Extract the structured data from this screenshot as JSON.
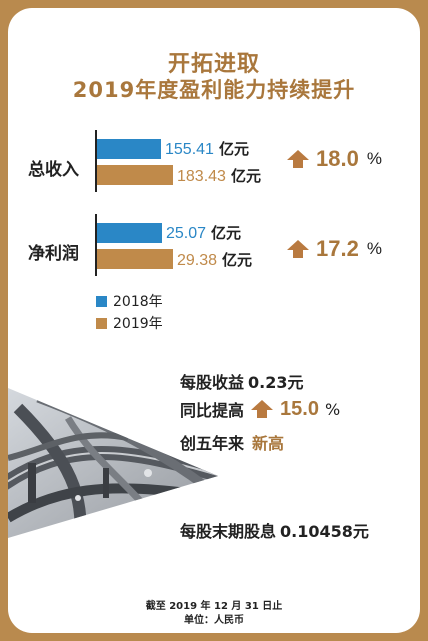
{
  "title": {
    "line1": "开拓进取",
    "line2": "2019年度盈利能力持续提升"
  },
  "colors": {
    "y2018": "#2a87c6",
    "y2019": "#c08a4a",
    "accent": "#a9773c",
    "arrow": "#b97a40"
  },
  "chart_data": {
    "type": "bar",
    "orientation": "horizontal",
    "categories": [
      "总收入",
      "净利润"
    ],
    "series": [
      {
        "name": "2018年",
        "values": [
          155.41,
          25.07
        ]
      },
      {
        "name": "2019年",
        "values": [
          183.43,
          29.38
        ]
      }
    ],
    "unit": "亿元",
    "value_labels": [
      {
        "2018": "155.41",
        "2019": "183.43"
      },
      {
        "2018": "25.07",
        "2019": "29.38"
      }
    ],
    "growth": [
      {
        "value": "18.0",
        "sign": "%"
      },
      {
        "value": "17.2",
        "sign": "%"
      }
    ],
    "legend": [
      "2018年",
      "2019年"
    ]
  },
  "info": {
    "eps_label": "每股收益",
    "eps_value": "0.23元",
    "yoy_label": "同比提高",
    "yoy_value": "15.0",
    "yoy_sign": "%",
    "record_label": "创五年来",
    "record_value": "新高",
    "dividend_label": "每股末期股息",
    "dividend_value": "0.10458元"
  },
  "footer": {
    "line1": "截至 2019 年 12 月 31 日止",
    "line2": "单位：人民币"
  },
  "icons": {
    "growth": "up-arrow-icon",
    "photo": "highway-interchange-photo"
  }
}
